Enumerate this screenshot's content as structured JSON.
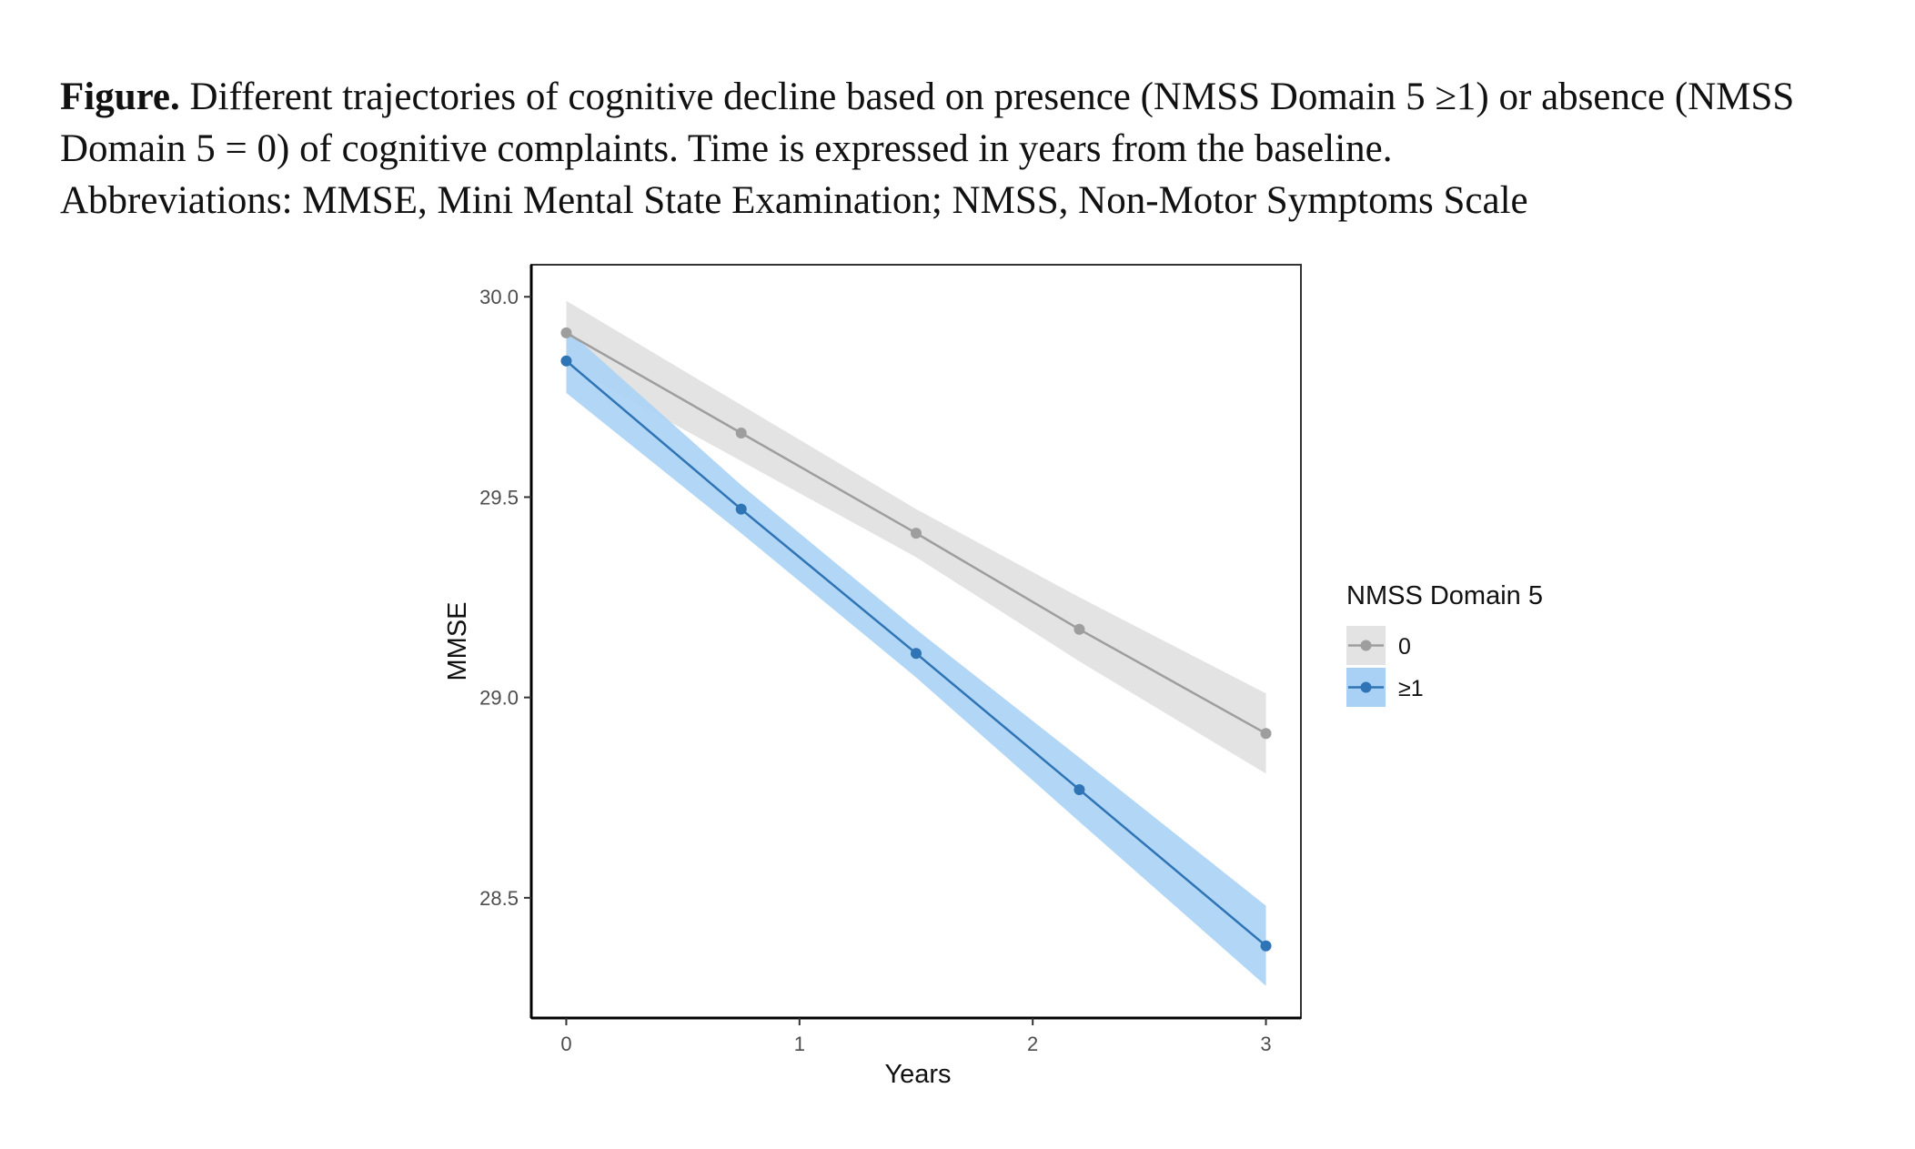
{
  "caption": {
    "figure_label": "Figure.",
    "line1_rest": "Different trajectories of cognitive decline based on presence (NMSS Domain 5 ≥1) or absence (NMSS",
    "line2": "Domain 5 = 0) of cognitive complaints. Time is expressed in years from the baseline.",
    "line3": "Abbreviations: MMSE, Mini Mental State Examination; NMSS, Non-Motor Symptoms Scale"
  },
  "chart_data": {
    "type": "line",
    "title": "",
    "xlabel": "Years",
    "ylabel": "MMSE",
    "xlim": [
      -0.15,
      3.15
    ],
    "ylim": [
      28.2,
      30.08
    ],
    "x_ticks": [
      0,
      1,
      2,
      3
    ],
    "x_tick_labels": [
      "0",
      "1",
      "2",
      "3"
    ],
    "y_ticks": [
      28.5,
      29.0,
      29.5,
      30.0
    ],
    "y_tick_labels": [
      "28.5",
      "29.0",
      "29.5",
      "30.0"
    ],
    "grid": false,
    "legend": {
      "title": "NMSS Domain 5",
      "position": "right"
    },
    "series": [
      {
        "name": "0",
        "color": "#9e9e9e",
        "band_color": "#e3e3e3",
        "x": [
          0,
          0.75,
          1.5,
          2.2,
          3
        ],
        "y": [
          29.91,
          29.66,
          29.41,
          29.17,
          28.91
        ],
        "lower": [
          29.83,
          29.59,
          29.35,
          29.09,
          28.81
        ],
        "upper": [
          29.99,
          29.73,
          29.47,
          29.25,
          29.01
        ]
      },
      {
        "name": "≥1",
        "color": "#2f74b5",
        "band_color": "#a9d1f5",
        "x": [
          0,
          0.75,
          1.5,
          2.2,
          3
        ],
        "y": [
          29.84,
          29.47,
          29.11,
          28.77,
          28.38
        ],
        "lower": [
          29.76,
          29.41,
          29.05,
          28.69,
          28.28
        ],
        "upper": [
          29.92,
          29.53,
          29.17,
          28.85,
          28.48
        ]
      }
    ]
  }
}
